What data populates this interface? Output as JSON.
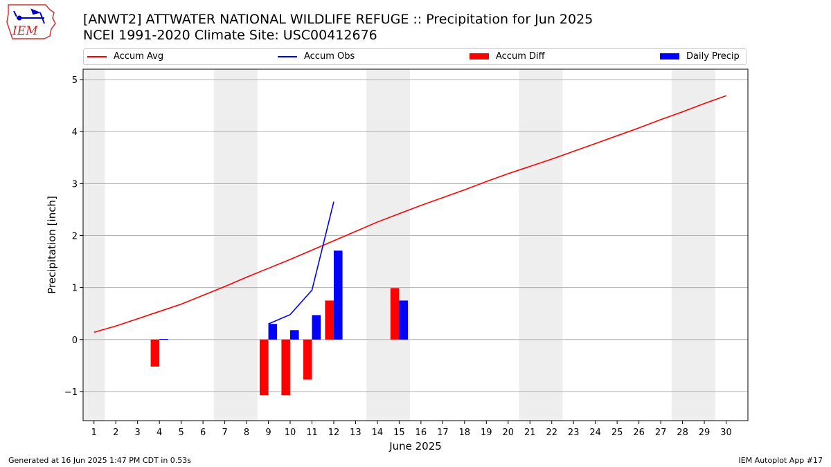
{
  "header": {
    "logo_text": "IEM",
    "title_line1": "[ANWT2] ATTWATER  NATIONAL WILDLIFE REFUGE :: Precipitation for Jun 2025",
    "title_line2": "NCEI 1991-2020 Climate Site: USC00412676"
  },
  "footer": {
    "generated": "Generated at 16 Jun 2025 1:47 PM CDT in 0.53s",
    "app": "IEM Autoplot App #17"
  },
  "colors": {
    "avg": "#ff0000",
    "obs": "#0000ff",
    "diff": "#ff0000",
    "daily": "#0000ff",
    "weekend_band": "#eeeeee",
    "grid": "#b0b0b0"
  },
  "chart_data": {
    "type": "bar",
    "title": "[ANWT2] ATTWATER  NATIONAL WILDLIFE REFUGE :: Precipitation for Jun 2025",
    "subtitle": "NCEI 1991-2020 Climate Site: USC00412676",
    "xlabel": "June 2025",
    "ylabel": "Precipitation [inch]",
    "xlim": [
      0.5,
      31
    ],
    "ylim": [
      -1.56,
      5.2
    ],
    "yticks": [
      -1,
      0,
      1,
      2,
      3,
      4,
      5
    ],
    "ytick_labels": [
      "−1",
      "0",
      "1",
      "2",
      "3",
      "4",
      "5"
    ],
    "xticks": [
      1,
      2,
      3,
      4,
      5,
      6,
      7,
      8,
      9,
      10,
      11,
      12,
      13,
      14,
      15,
      16,
      17,
      18,
      19,
      20,
      21,
      22,
      23,
      24,
      25,
      26,
      27,
      28,
      29,
      30
    ],
    "grid": "horizontal",
    "legend_position": "top",
    "weekend_bands": [
      [
        0.5,
        1.5
      ],
      [
        6.5,
        8.5
      ],
      [
        13.5,
        15.5
      ],
      [
        20.5,
        22.5
      ],
      [
        27.5,
        29.5
      ]
    ],
    "legend": [
      "Accum Avg",
      "Accum Obs",
      "Accum Diff",
      "Daily Precip"
    ],
    "series": [
      {
        "name": "Accum Avg",
        "kind": "line",
        "x": [
          1,
          2,
          3,
          4,
          5,
          6,
          7,
          8,
          9,
          10,
          11,
          12,
          13,
          14,
          15,
          16,
          17,
          18,
          19,
          20,
          21,
          22,
          23,
          24,
          25,
          26,
          27,
          28,
          29,
          30
        ],
        "values": [
          0.14,
          0.26,
          0.4,
          0.54,
          0.68,
          0.85,
          1.02,
          1.2,
          1.37,
          1.54,
          1.72,
          1.9,
          2.08,
          2.26,
          2.42,
          2.58,
          2.73,
          2.88,
          3.04,
          3.19,
          3.33,
          3.47,
          3.62,
          3.77,
          3.92,
          4.07,
          4.23,
          4.38,
          4.54,
          4.69
        ]
      },
      {
        "name": "Accum Obs",
        "kind": "line",
        "x": [
          9,
          10,
          11,
          12
        ],
        "values": [
          0.3,
          0.48,
          0.95,
          2.65
        ]
      },
      {
        "name": "Accum Diff",
        "kind": "bar",
        "x": [
          4,
          9,
          10,
          11,
          12,
          15
        ],
        "values": [
          -0.52,
          -1.07,
          -1.07,
          -0.77,
          0.75,
          0.99
        ]
      },
      {
        "name": "Daily Precip",
        "kind": "bar",
        "x": [
          4,
          9,
          10,
          11,
          12,
          15
        ],
        "values": [
          0.01,
          0.3,
          0.18,
          0.47,
          1.71,
          0.75
        ]
      }
    ]
  }
}
